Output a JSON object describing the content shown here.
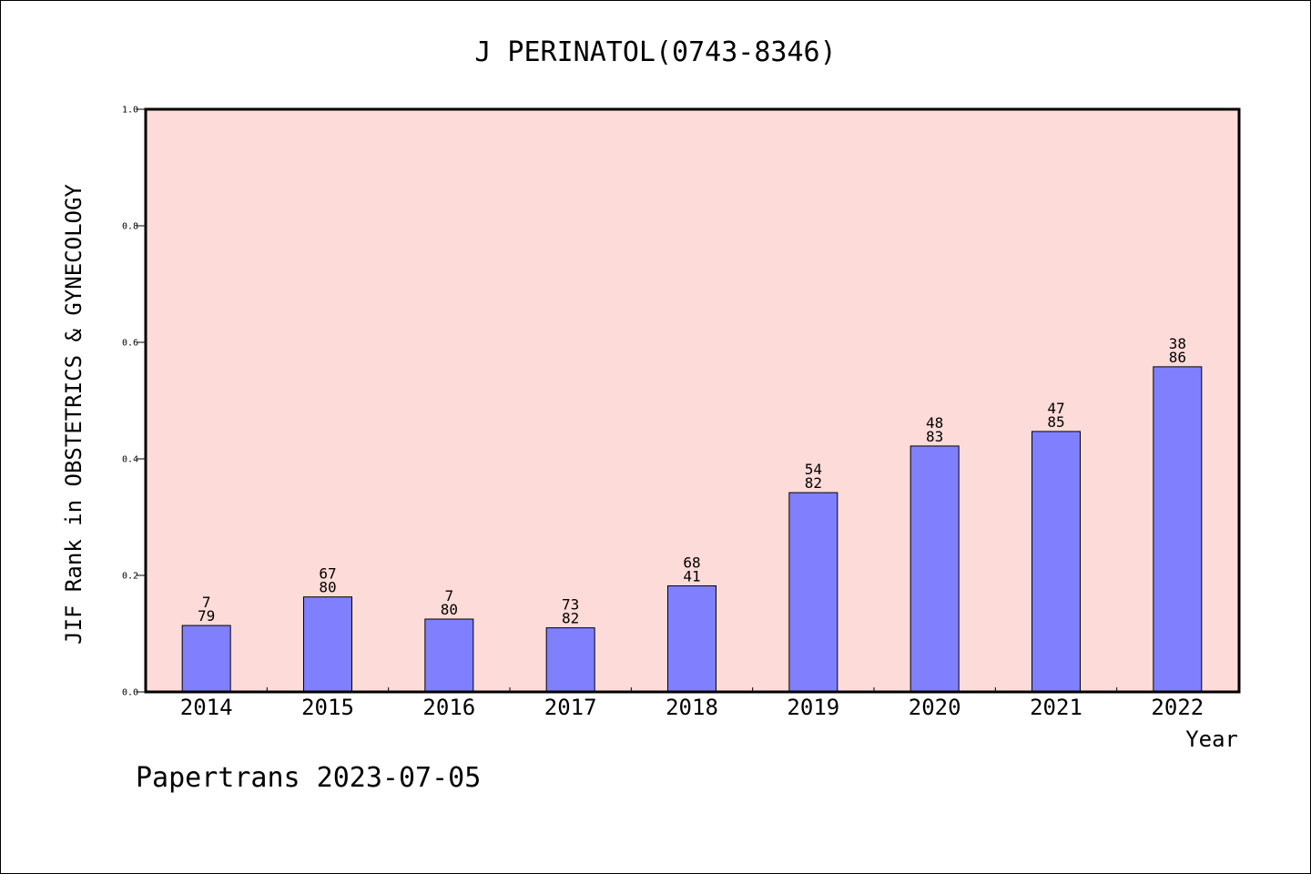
{
  "chart_data": {
    "type": "bar",
    "title": "J PERINATOL(0743-8346)",
    "xlabel": "Year",
    "ylabel": "JIF Rank in OBSTETRICS & GYNECOLOGY",
    "categories": [
      "2014",
      "2015",
      "2016",
      "2017",
      "2018",
      "2019",
      "2020",
      "2021",
      "2022"
    ],
    "values": [
      0.114,
      0.163,
      0.125,
      0.11,
      0.182,
      0.342,
      0.422,
      0.447,
      0.558
    ],
    "labels_top": [
      "7",
      "67",
      "7",
      "73",
      "68",
      "54",
      "48",
      "47",
      "38"
    ],
    "labels_bottom": [
      "79",
      "80",
      "80",
      "82",
      "41",
      "82",
      "83",
      "85",
      "86"
    ],
    "ylim": [
      0.0,
      1.0
    ],
    "yticks": [
      "0.0",
      "0.2",
      "0.4",
      "0.6",
      "0.8",
      "1.0"
    ],
    "grid": false,
    "legend": "none",
    "colors": {
      "plot_background": "#fddbd8",
      "bar_fill": "#8080ff",
      "bar_edge": "#000000",
      "axis": "#000000"
    }
  },
  "footer": "Papertrans 2023-07-05"
}
